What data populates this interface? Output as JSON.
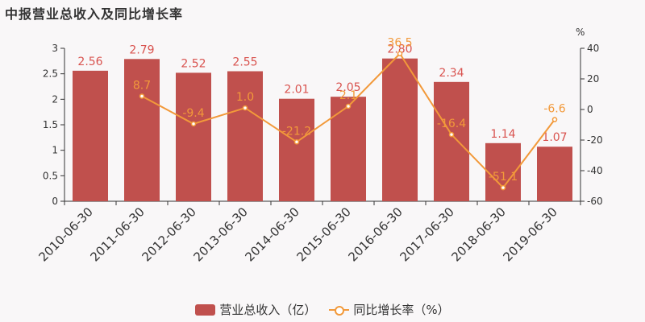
{
  "title": "中报营业总收入及同比增长率",
  "colors": {
    "bar": "#c0504d",
    "line": "#f2993a",
    "bar_label": "#d9534f",
    "line_label": "#f2993a",
    "axis": "#333333"
  },
  "chart_data": {
    "type": "bar",
    "categories": [
      "2010-06-30",
      "2011-06-30",
      "2012-06-30",
      "2013-06-30",
      "2014-06-30",
      "2015-06-30",
      "2016-06-30",
      "2017-06-30",
      "2018-06-30",
      "2019-06-30"
    ],
    "series": [
      {
        "name": "营业总收入（亿）",
        "type": "bar",
        "axis": "left",
        "values": [
          2.56,
          2.79,
          2.52,
          2.55,
          2.01,
          2.05,
          2.8,
          2.34,
          1.14,
          1.07
        ],
        "labels": [
          "2.56",
          "2.79",
          "2.52",
          "2.55",
          "2.01",
          "2.05",
          "2.80",
          "2.34",
          "1.14",
          "1.07"
        ]
      },
      {
        "name": "同比增长率（%）",
        "type": "line",
        "axis": "right",
        "values": [
          null,
          8.7,
          -9.4,
          1.0,
          -21.2,
          2.1,
          36.5,
          -16.4,
          -51.1,
          -6.6
        ],
        "labels": [
          "",
          "8.7",
          "-9.4",
          "1.0",
          "-21.2",
          "2.1",
          "36.5",
          "-16.4",
          "-51.1",
          "-6.6"
        ]
      }
    ],
    "y_left": {
      "min": 0,
      "max": 3,
      "ticks": [
        "0",
        "0.5",
        "1",
        "1.5",
        "2",
        "2.5",
        "3"
      ]
    },
    "y_right": {
      "min": -60,
      "max": 40,
      "unit": "%",
      "ticks": [
        "-60",
        "-40",
        "-20",
        "0",
        "20",
        "40"
      ]
    },
    "legend_position": "bottom-center",
    "grid": false
  }
}
